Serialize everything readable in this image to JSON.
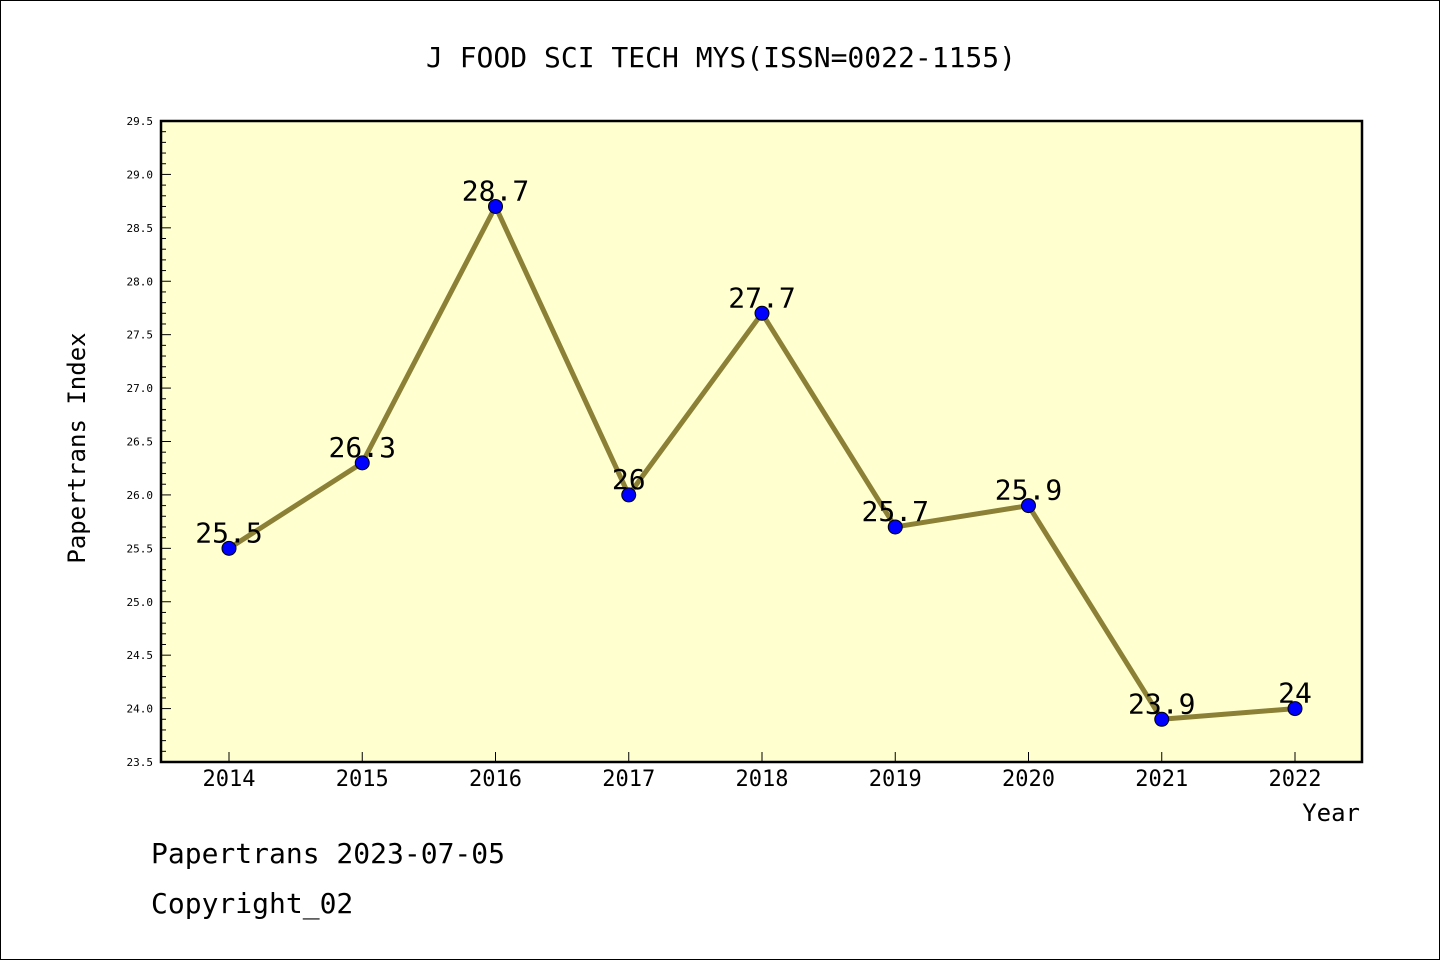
{
  "chart_data": {
    "type": "line",
    "title": "J FOOD SCI TECH MYS(ISSN=0022-1155)",
    "xlabel": "Year",
    "ylabel": "Papertrans Index",
    "categories": [
      "2014",
      "2015",
      "2016",
      "2017",
      "2018",
      "2019",
      "2020",
      "2021",
      "2022"
    ],
    "values": [
      25.5,
      26.3,
      28.7,
      26,
      27.7,
      25.7,
      25.9,
      23.9,
      24
    ],
    "data_labels": [
      "25.5",
      "26.3",
      "28.7",
      "26",
      "27.7",
      "25.7",
      "25.9",
      "23.9",
      "24"
    ],
    "ylim": [
      23.5,
      29.5
    ],
    "yticks": [
      "23.5",
      "24.0",
      "24.5",
      "25.0",
      "25.5",
      "26.0",
      "26.5",
      "27.0",
      "27.5",
      "28.0",
      "28.5",
      "29.0",
      "29.5"
    ],
    "grid": false,
    "legend": "none",
    "colors": {
      "plot_background": "#ffffd0",
      "line": "#8b8036",
      "marker": "#0000ff"
    }
  },
  "footer": {
    "line1": "Papertrans 2023-07-05",
    "line2": "Copyright_02"
  }
}
